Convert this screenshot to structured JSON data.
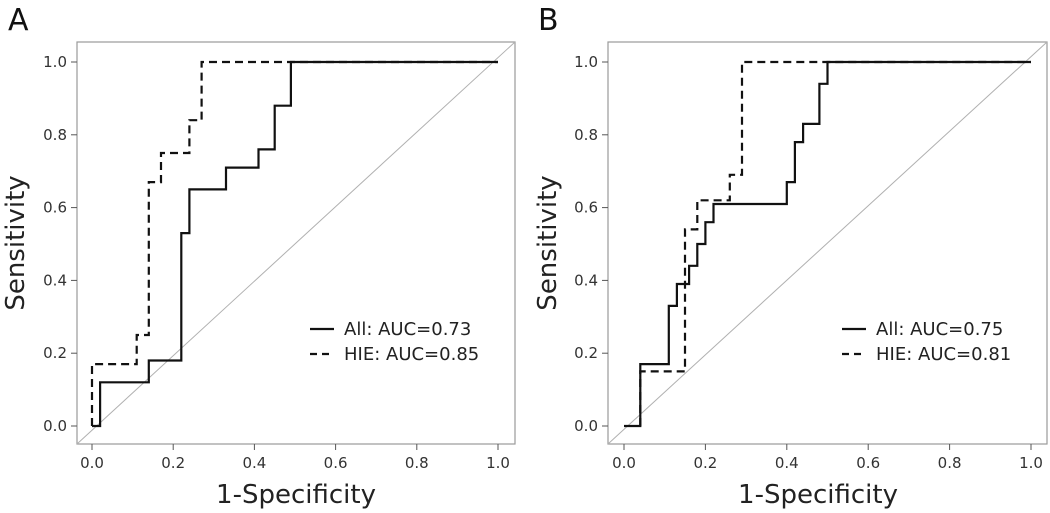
{
  "chart_data": [
    {
      "type": "line",
      "panel_label": "A",
      "xlabel": "1-Specificity",
      "ylabel": "Sensitivity",
      "xlim": [
        0,
        1
      ],
      "ylim": [
        0,
        1
      ],
      "xticks": [
        "0.0",
        "0.2",
        "0.4",
        "0.6",
        "0.8",
        "1.0"
      ],
      "yticks": [
        "0.0",
        "0.2",
        "0.4",
        "0.6",
        "0.8",
        "1.0"
      ],
      "diagonal": true,
      "legend_position": "bottom-right",
      "series": [
        {
          "name": "All: AUC=0.73",
          "style": "solid",
          "x": [
            0.0,
            0.0,
            0.02,
            0.02,
            0.14,
            0.14,
            0.22,
            0.22,
            0.24,
            0.24,
            0.27,
            0.27,
            0.33,
            0.33,
            0.41,
            0.41,
            0.45,
            0.45,
            0.49,
            0.49,
            1.0
          ],
          "y": [
            0.0,
            0.0,
            0.0,
            0.12,
            0.12,
            0.18,
            0.18,
            0.53,
            0.53,
            0.65,
            0.65,
            0.65,
            0.65,
            0.71,
            0.71,
            0.76,
            0.76,
            0.88,
            0.88,
            1.0,
            1.0
          ]
        },
        {
          "name": "HIE: AUC=0.85",
          "style": "dashed",
          "x": [
            0.0,
            0.0,
            0.11,
            0.11,
            0.14,
            0.14,
            0.17,
            0.17,
            0.24,
            0.24,
            0.27,
            0.27,
            1.0
          ],
          "y": [
            0.0,
            0.17,
            0.17,
            0.25,
            0.25,
            0.67,
            0.67,
            0.75,
            0.75,
            0.84,
            0.84,
            1.0,
            1.0
          ]
        }
      ]
    },
    {
      "type": "line",
      "panel_label": "B",
      "xlabel": "1-Specificity",
      "ylabel": "Sensitivity",
      "xlim": [
        0,
        1
      ],
      "ylim": [
        0,
        1
      ],
      "xticks": [
        "0.0",
        "0.2",
        "0.4",
        "0.6",
        "0.8",
        "1.0"
      ],
      "yticks": [
        "0.0",
        "0.2",
        "0.4",
        "0.6",
        "0.8",
        "1.0"
      ],
      "diagonal": true,
      "legend_position": "bottom-right",
      "series": [
        {
          "name": "All: AUC=0.75",
          "style": "solid",
          "x": [
            0.0,
            0.04,
            0.04,
            0.11,
            0.11,
            0.13,
            0.13,
            0.16,
            0.16,
            0.18,
            0.18,
            0.2,
            0.2,
            0.22,
            0.22,
            0.24,
            0.24,
            0.4,
            0.4,
            0.42,
            0.42,
            0.44,
            0.44,
            0.48,
            0.48,
            0.5,
            0.5,
            0.51,
            0.51,
            1.0
          ],
          "y": [
            0.0,
            0.0,
            0.17,
            0.17,
            0.33,
            0.33,
            0.39,
            0.39,
            0.44,
            0.44,
            0.5,
            0.5,
            0.56,
            0.56,
            0.61,
            0.61,
            0.61,
            0.61,
            0.67,
            0.67,
            0.78,
            0.78,
            0.83,
            0.83,
            0.94,
            0.94,
            1.0,
            1.0,
            1.0,
            1.0
          ]
        },
        {
          "name": "HIE: AUC=0.81",
          "style": "dashed",
          "x": [
            0.04,
            0.04,
            0.15,
            0.15,
            0.18,
            0.18,
            0.24,
            0.24,
            0.26,
            0.26,
            0.29,
            0.29,
            1.0
          ],
          "y": [
            0.0,
            0.15,
            0.15,
            0.54,
            0.54,
            0.62,
            0.62,
            0.62,
            0.62,
            0.69,
            0.69,
            1.0,
            1.0
          ]
        }
      ]
    }
  ]
}
